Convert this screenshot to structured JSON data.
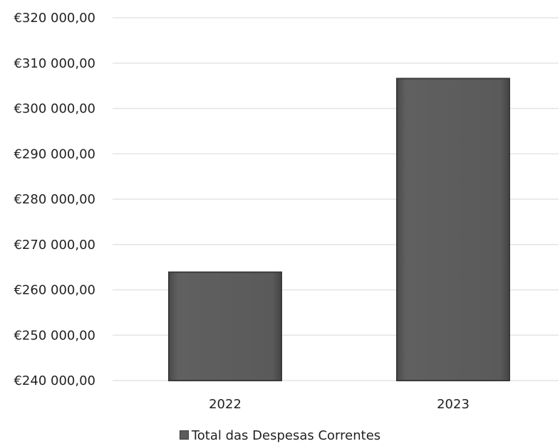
{
  "chart_data": {
    "type": "bar",
    "categories": [
      "2022",
      "2023"
    ],
    "series": [
      {
        "name": "Total das Despesas Correntes",
        "values": [
          263900,
          306600
        ]
      }
    ],
    "ylim": [
      240000,
      320000
    ],
    "yticks": [
      240000,
      250000,
      260000,
      270000,
      280000,
      290000,
      300000,
      310000,
      320000
    ],
    "ytick_labels": [
      "€240 000,00",
      "€250 000,00",
      "€260 000,00",
      "€270 000,00",
      "€280 000,00",
      "€290 000,00",
      "€300 000,00",
      "€310 000,00",
      "€320 000,00"
    ],
    "title": "",
    "xlabel": "",
    "ylabel": "",
    "grid": true,
    "legend_position": "bottom",
    "colors": {
      "bar": "#5c5c5c",
      "bar_edge": "#3a3a3a",
      "grid": "#e4e4e4"
    }
  }
}
